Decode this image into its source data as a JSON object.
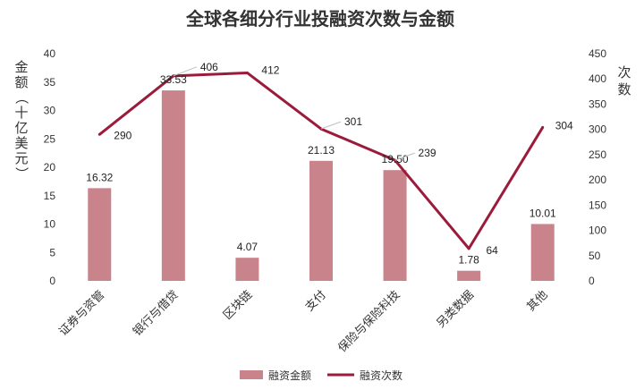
{
  "chart_data": {
    "type": "bar",
    "title": "全球各细分行业投融资次数与金额",
    "categories": [
      "证券与资管",
      "银行与借贷",
      "区块链",
      "支付",
      "保险与保险科技",
      "另类数据",
      "其他"
    ],
    "series": [
      {
        "name": "融资金额",
        "type": "bar",
        "axis": "left",
        "values": [
          16.32,
          33.53,
          4.07,
          21.13,
          19.5,
          1.78,
          10.01
        ],
        "labels": [
          "16.32",
          "33.53",
          "4.07",
          "21.13",
          "19.50",
          "1.78",
          "10.01"
        ]
      },
      {
        "name": "融资次数",
        "type": "line",
        "axis": "right",
        "values": [
          290,
          406,
          412,
          301,
          239,
          64,
          304
        ],
        "labels": [
          "290",
          "406",
          "412",
          "301",
          "239",
          "64",
          "304"
        ]
      }
    ],
    "ylabel": "金额（十亿美元）",
    "y2label": "次数",
    "ylim": [
      0,
      40
    ],
    "y2lim": [
      0,
      450
    ],
    "yticks": [
      "0",
      "5",
      "10",
      "15",
      "20",
      "25",
      "30",
      "35",
      "40"
    ],
    "y2ticks": [
      "0",
      "50",
      "100",
      "150",
      "200",
      "250",
      "300",
      "350",
      "400",
      "450"
    ],
    "grid": false,
    "legend": "bottom",
    "colors": {
      "bar": "#c8838b",
      "line": "#9b1b3b",
      "text": "#333333"
    }
  }
}
